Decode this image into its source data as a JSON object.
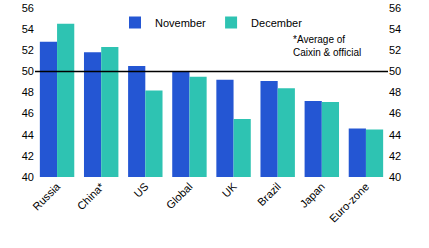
{
  "chart_data": {
    "type": "bar",
    "categories": [
      "Russia",
      "China*",
      "US",
      "Global",
      "UK",
      "Brazil",
      "Japan",
      "Euro-zone"
    ],
    "series": [
      {
        "name": "November",
        "color": "#2456d3",
        "values": [
          52.8,
          51.8,
          50.5,
          50.0,
          49.2,
          49.1,
          47.2,
          44.6
        ]
      },
      {
        "name": "December",
        "color": "#2ec3b2",
        "values": [
          54.5,
          52.3,
          48.2,
          49.5,
          45.5,
          48.4,
          47.1,
          44.5
        ]
      }
    ],
    "annotations": [
      "*Average of",
      "Caixin & official"
    ],
    "hline": 50,
    "ylim": [
      40,
      56
    ],
    "yticks": [
      40,
      42,
      44,
      46,
      48,
      50,
      52,
      54,
      56
    ],
    "y2lim": [
      40,
      56
    ],
    "y2ticks": [
      40,
      42,
      44,
      46,
      48,
      50,
      52,
      54,
      56
    ],
    "grid": false,
    "legend": "top"
  }
}
